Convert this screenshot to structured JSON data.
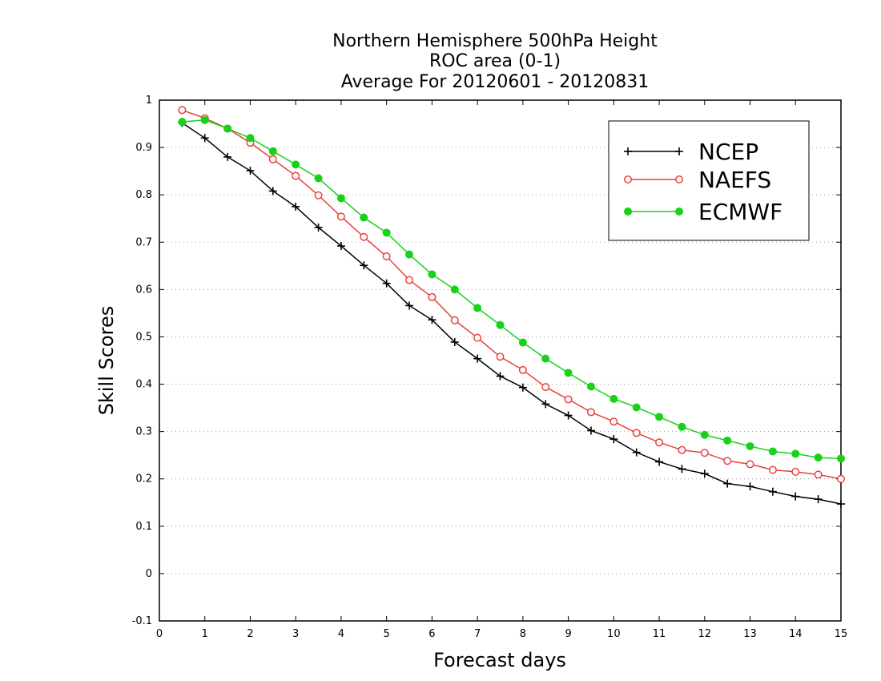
{
  "chart_data": {
    "type": "line",
    "title": [
      "Northern Hemisphere 500hPa Height",
      "ROC area (0-1)",
      "Average For 20120601 - 20120831"
    ],
    "xlabel": "Forecast days",
    "ylabel": "Skill Scores",
    "xlim": [
      0,
      15
    ],
    "ylim": [
      -0.1,
      1
    ],
    "x_ticks": [
      0,
      1,
      2,
      3,
      4,
      5,
      6,
      7,
      8,
      9,
      10,
      11,
      12,
      13,
      14,
      15
    ],
    "y_ticks": [
      -0.1,
      0,
      0.1,
      0.2,
      0.3,
      0.4,
      0.5,
      0.6,
      0.7,
      0.8,
      0.9,
      1
    ],
    "y_tick_labels": [
      "-0.1",
      "0",
      "0.1",
      "0.2",
      "0.3",
      "0.4",
      "0.5",
      "0.6",
      "0.7",
      "0.8",
      "0.9",
      "1"
    ],
    "grid": "horizontal dotted",
    "legend_position": "top-right",
    "x": [
      0.5,
      1,
      1.5,
      2,
      2.5,
      3,
      3.5,
      4,
      4.5,
      5,
      5.5,
      6,
      6.5,
      7,
      7.5,
      8,
      8.5,
      9,
      9.5,
      10,
      10.5,
      11,
      11.5,
      12,
      12.5,
      13,
      13.5,
      14,
      14.5,
      15
    ],
    "series": [
      {
        "name": "NCEP",
        "color": "#000000",
        "marker": "plus",
        "values": [
          0.952,
          0.92,
          0.88,
          0.851,
          0.808,
          0.775,
          0.731,
          0.692,
          0.651,
          0.613,
          0.566,
          0.536,
          0.489,
          0.454,
          0.417,
          0.393,
          0.358,
          0.334,
          0.302,
          0.284,
          0.256,
          0.236,
          0.221,
          0.211,
          0.19,
          0.184,
          0.173,
          0.163,
          0.157,
          0.147
        ]
      },
      {
        "name": "NAEFS",
        "color": "#e8413c",
        "marker": "open-circle",
        "values": [
          0.979,
          0.962,
          0.94,
          0.91,
          0.875,
          0.84,
          0.799,
          0.754,
          0.711,
          0.67,
          0.62,
          0.584,
          0.535,
          0.498,
          0.458,
          0.43,
          0.394,
          0.368,
          0.341,
          0.321,
          0.297,
          0.277,
          0.261,
          0.255,
          0.238,
          0.231,
          0.219,
          0.215,
          0.209,
          0.2
        ]
      },
      {
        "name": "ECMWF",
        "color": "#19d119",
        "marker": "filled-circle",
        "values": [
          0.954,
          0.958,
          0.94,
          0.92,
          0.892,
          0.864,
          0.835,
          0.793,
          0.752,
          0.72,
          0.674,
          0.632,
          0.6,
          0.561,
          0.525,
          0.488,
          0.454,
          0.424,
          0.395,
          0.369,
          0.351,
          0.331,
          0.31,
          0.293,
          0.281,
          0.269,
          0.258,
          0.253,
          0.245,
          0.243
        ]
      }
    ]
  }
}
